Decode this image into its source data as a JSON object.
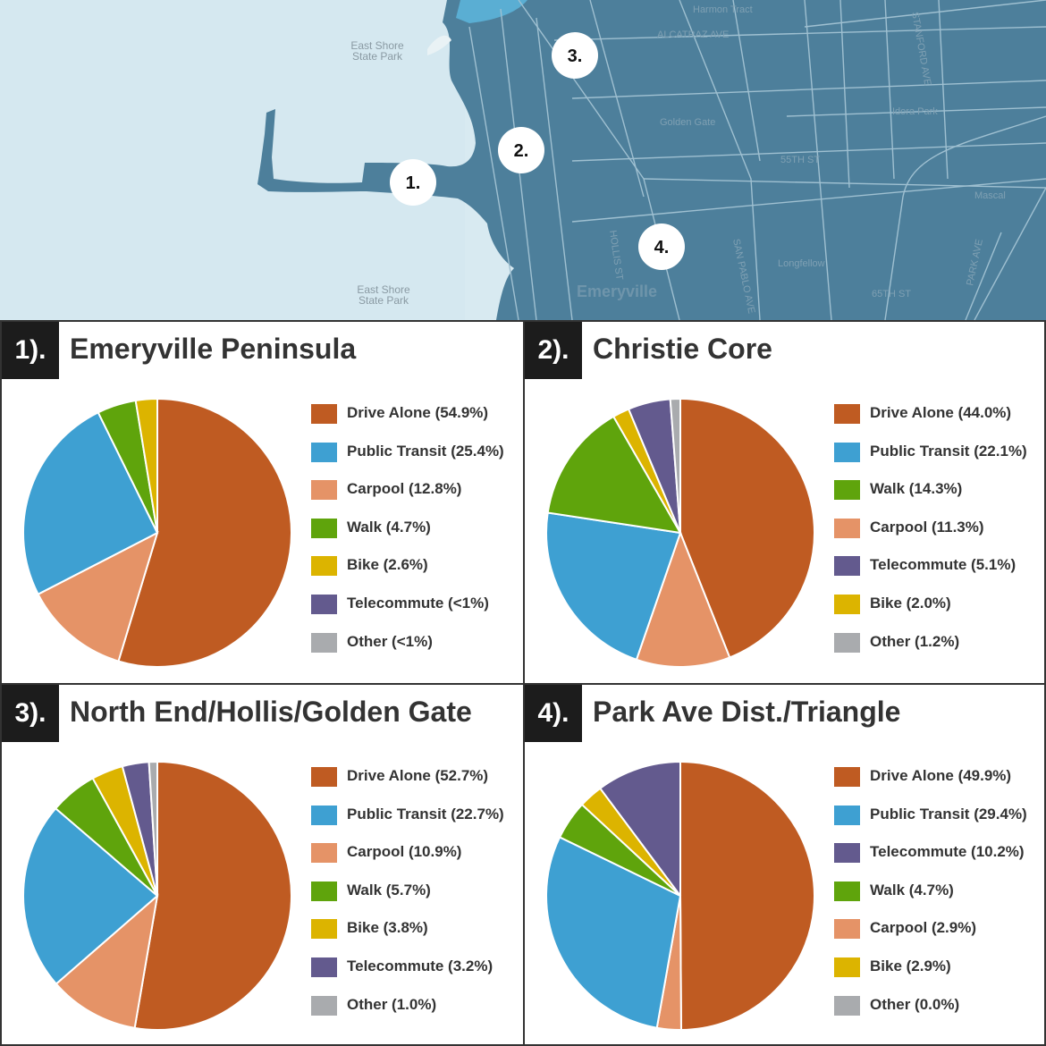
{
  "map": {
    "park_label_top": [
      "East Shore",
      "State Park"
    ],
    "park_label_bottom": [
      "East Shore",
      "State Park"
    ],
    "street_labels": [
      "Harmon Tract",
      "ALCATRAZ AVE",
      "STANFORD AVE",
      "Golden Gate",
      "55TH ST",
      "Idora Park",
      "Longfellow",
      "Emeryville",
      "HOLLIS ST",
      "SAN PABLO AVE",
      "65TH ST",
      "PARK AVE",
      "Mascal"
    ],
    "markers": [
      {
        "id": "1",
        "label": "1."
      },
      {
        "id": "2",
        "label": "2."
      },
      {
        "id": "3",
        "label": "3."
      },
      {
        "id": "4",
        "label": "4."
      }
    ],
    "colors": {
      "water": "#d8eaf1",
      "land": "#4d7f9b",
      "roads": "#9fc0d1"
    }
  },
  "chart_data": [
    {
      "type": "pie",
      "number": "1).",
      "title": "Emeryville Peninsula",
      "slices": [
        {
          "label": "Drive Alone (54.9%)",
          "value": 54.9,
          "color": "#bf5b22"
        },
        {
          "label": "Public Transit (25.4%)",
          "value": 25.4,
          "color": "#3ea0d2"
        },
        {
          "label": "Carpool (12.8%)",
          "value": 12.8,
          "color": "#e59367"
        },
        {
          "label": "Walk (4.7%)",
          "value": 4.7,
          "color": "#5fa40c"
        },
        {
          "label": "Bike (2.6%)",
          "value": 2.6,
          "color": "#dcb400"
        },
        {
          "label": "Telecommute (<1%)",
          "value": 0.0,
          "color": "#635a8e"
        },
        {
          "label": "Other (<1%)",
          "value": 0.0,
          "color": "#a9abae"
        }
      ],
      "pie_order": [
        0,
        2,
        1,
        3,
        4,
        5,
        6
      ]
    },
    {
      "type": "pie",
      "number": "2).",
      "title": "Christie Core",
      "slices": [
        {
          "label": "Drive Alone (44.0%)",
          "value": 44.0,
          "color": "#bf5b22"
        },
        {
          "label": "Public Transit (22.1%)",
          "value": 22.1,
          "color": "#3ea0d2"
        },
        {
          "label": "Walk (14.3%)",
          "value": 14.3,
          "color": "#5fa40c"
        },
        {
          "label": "Carpool (11.3%)",
          "value": 11.3,
          "color": "#e59367"
        },
        {
          "label": "Telecommute (5.1%)",
          "value": 5.1,
          "color": "#635a8e"
        },
        {
          "label": "Bike (2.0%)",
          "value": 2.0,
          "color": "#dcb400"
        },
        {
          "label": "Other (1.2%)",
          "value": 1.2,
          "color": "#a9abae"
        }
      ],
      "pie_order": [
        0,
        3,
        1,
        2,
        5,
        4,
        6
      ]
    },
    {
      "type": "pie",
      "number": "3).",
      "title": "North End/Hollis/Golden Gate",
      "slices": [
        {
          "label": "Drive Alone (52.7%)",
          "value": 52.7,
          "color": "#bf5b22"
        },
        {
          "label": "Public Transit (22.7%)",
          "value": 22.7,
          "color": "#3ea0d2"
        },
        {
          "label": "Carpool (10.9%)",
          "value": 10.9,
          "color": "#e59367"
        },
        {
          "label": "Walk (5.7%)",
          "value": 5.7,
          "color": "#5fa40c"
        },
        {
          "label": "Bike (3.8%)",
          "value": 3.8,
          "color": "#dcb400"
        },
        {
          "label": "Telecommute (3.2%)",
          "value": 3.2,
          "color": "#635a8e"
        },
        {
          "label": "Other (1.0%)",
          "value": 1.0,
          "color": "#a9abae"
        }
      ],
      "pie_order": [
        0,
        2,
        1,
        3,
        4,
        5,
        6
      ]
    },
    {
      "type": "pie",
      "number": "4).",
      "title": "Park Ave Dist./Triangle",
      "slices": [
        {
          "label": "Drive Alone (49.9%)",
          "value": 49.9,
          "color": "#bf5b22"
        },
        {
          "label": "Public Transit (29.4%)",
          "value": 29.4,
          "color": "#3ea0d2"
        },
        {
          "label": "Telecommute (10.2%)",
          "value": 10.2,
          "color": "#635a8e"
        },
        {
          "label": "Walk (4.7%)",
          "value": 4.7,
          "color": "#5fa40c"
        },
        {
          "label": "Carpool (2.9%)",
          "value": 2.9,
          "color": "#e59367"
        },
        {
          "label": "Bike (2.9%)",
          "value": 2.9,
          "color": "#dcb400"
        },
        {
          "label": "Other (0.0%)",
          "value": 0.0,
          "color": "#a9abae"
        }
      ],
      "pie_order": [
        0,
        4,
        1,
        3,
        5,
        2,
        6
      ]
    }
  ]
}
